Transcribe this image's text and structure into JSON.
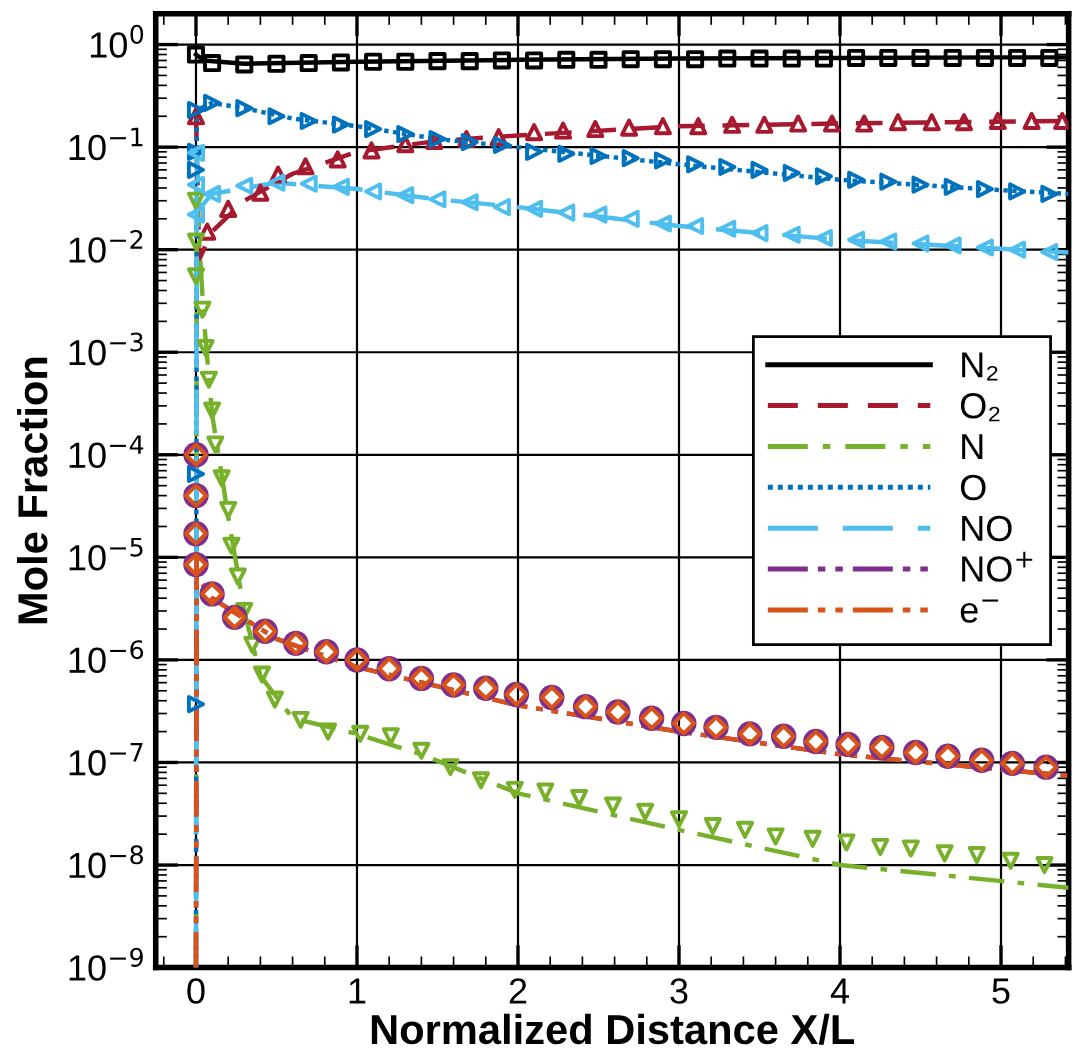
{
  "chart_data": {
    "type": "line",
    "xlabel": "Normalized Distance X/L",
    "ylabel": "Mole Fraction",
    "log": "y",
    "grid": true,
    "legend": "right",
    "xlim": [
      -0.25,
      5.42
    ],
    "xticks": [
      0,
      1,
      2,
      3,
      4,
      5
    ],
    "ylim": [
      1e-09,
      2
    ],
    "yticks": [
      {
        "value": 1e-09,
        "label": "10$^{−9}$"
      },
      {
        "value": 1e-08,
        "label": "10$^{−8}$"
      },
      {
        "value": 1e-07,
        "label": "10$^{−7}$"
      },
      {
        "value": 1e-06,
        "label": "10$^{−6}$"
      },
      {
        "value": 1e-05,
        "label": "10$^{−5}$"
      },
      {
        "value": 0.0001,
        "label": "10$^{−4}$"
      },
      {
        "value": 0.001,
        "label": "10$^{−3}$"
      },
      {
        "value": 0.01,
        "label": "10$^{−2}$"
      },
      {
        "value": 0.1,
        "label": "10$^{−1}$"
      },
      {
        "value": 1,
        "label": "10$^{0}$"
      }
    ],
    "series": [
      {
        "name": "N₂",
        "color": "#000000",
        "line_style": "solid",
        "x": [
          0,
          0.05,
          0.3,
          1,
          2,
          3,
          4,
          5,
          5.42
        ],
        "values": [
          0.8,
          0.7,
          0.65,
          0.68,
          0.71,
          0.73,
          0.74,
          0.75,
          0.75
        ]
      },
      {
        "name": "O₂",
        "color": "#a6192e",
        "line_style": "dashed",
        "x": [
          0,
          0.02,
          0.1,
          0.3,
          0.6,
          1,
          1.5,
          2,
          3,
          4,
          5.42
        ],
        "values": [
          0.21,
          0.008,
          0.015,
          0.03,
          0.055,
          0.09,
          0.115,
          0.13,
          0.16,
          0.17,
          0.18
        ]
      },
      {
        "name": "N",
        "color": "#77b02a",
        "line_style": "dashdot",
        "x": [
          0,
          0.005,
          0.05,
          0.1,
          0.2,
          0.3,
          0.4,
          0.6,
          1,
          1.4,
          2,
          3,
          4,
          5.42
        ],
        "values": [
          1e-09,
          0.03,
          0.002,
          0.00025,
          2.5e-05,
          3e-06,
          7e-07,
          2.7e-07,
          1.9e-07,
          1.2e-07,
          5e-08,
          2.2e-08,
          1e-08,
          6e-09
        ]
      },
      {
        "name": "O",
        "color": "#0072bd",
        "line_style": "dotted",
        "x": [
          0,
          0.005,
          0.1,
          0.3,
          0.6,
          1,
          1.5,
          2,
          3,
          4,
          5,
          5.42
        ],
        "values": [
          1e-09,
          0.23,
          0.27,
          0.24,
          0.19,
          0.16,
          0.12,
          0.1,
          0.068,
          0.048,
          0.038,
          0.035
        ]
      },
      {
        "name": "NO",
        "color": "#4dbeee",
        "line_style": "longdash",
        "x": [
          0,
          0.005,
          0.02,
          0.1,
          0.5,
          1,
          1.5,
          2,
          3,
          4,
          5,
          5.42
        ],
        "values": [
          1e-09,
          0.09,
          0.025,
          0.035,
          0.045,
          0.039,
          0.031,
          0.026,
          0.017,
          0.0125,
          0.0102,
          0.0094
        ]
      },
      {
        "name": "NO$^{+}$",
        "color": "#7e2f8e",
        "line_style": "dashdotdot",
        "x": [
          0,
          0.005,
          0.04,
          0.1,
          0.5,
          1,
          2,
          3,
          4,
          5.42
        ],
        "values": [
          1e-09,
          1e-05,
          5.5e-06,
          4e-06,
          1.6e-06,
          8.5e-07,
          3.6e-07,
          2e-07,
          1.2e-07,
          7.4e-08
        ]
      },
      {
        "name": "e$^{−}$",
        "color": "#d95319",
        "line_style": "dashdotdot",
        "x": [
          0,
          0.005,
          0.04,
          0.1,
          0.5,
          1,
          2,
          3,
          4,
          5.42
        ],
        "values": [
          1e-09,
          1e-05,
          5.5e-06,
          4e-06,
          1.6e-06,
          8.5e-07,
          3.6e-07,
          2e-07,
          1.2e-07,
          7.4e-08
        ]
      },
      {
        "type": "scatter",
        "marker": "square",
        "color": "#000000",
        "x": [
          0,
          0.1,
          0.3,
          0.5,
          0.7,
          0.9,
          1.1,
          1.3,
          1.5,
          1.7,
          1.9,
          2.1,
          2.3,
          2.5,
          2.7,
          2.9,
          3.1,
          3.3,
          3.5,
          3.7,
          3.9,
          4.1,
          4.3,
          4.5,
          4.7,
          4.9,
          5.1,
          5.3
        ],
        "values": [
          0.8,
          0.66,
          0.64,
          0.65,
          0.66,
          0.67,
          0.68,
          0.68,
          0.69,
          0.69,
          0.7,
          0.7,
          0.71,
          0.71,
          0.72,
          0.72,
          0.72,
          0.73,
          0.73,
          0.73,
          0.73,
          0.74,
          0.74,
          0.74,
          0.74,
          0.74,
          0.74,
          0.74
        ]
      },
      {
        "type": "scatter",
        "marker": "triangle-up",
        "color": "#a6192e",
        "x": [
          0,
          0.07,
          0.2,
          0.4,
          0.51,
          0.68,
          0.88,
          1.09,
          1.3,
          1.48,
          1.68,
          1.88,
          2.1,
          2.28,
          2.48,
          2.69,
          2.9,
          3.12,
          3.33,
          3.53,
          3.74,
          3.95,
          4.15,
          4.36,
          4.57,
          4.77,
          4.98,
          5.19,
          5.38
        ],
        "values": [
          0.2,
          0.015,
          0.025,
          0.036,
          0.054,
          0.065,
          0.076,
          0.093,
          0.107,
          0.115,
          0.12,
          0.125,
          0.14,
          0.145,
          0.15,
          0.155,
          0.16,
          0.16,
          0.165,
          0.165,
          0.17,
          0.17,
          0.17,
          0.175,
          0.175,
          0.175,
          0.18,
          0.18,
          0.18
        ]
      },
      {
        "type": "scatter",
        "marker": "triangle-down",
        "color": "#77b02a",
        "x": [
          0,
          0,
          0,
          0.04,
          0.06,
          0.08,
          0.1,
          0.12,
          0.16,
          0.2,
          0.22,
          0.26,
          0.3,
          0.35,
          0.41,
          0.49,
          0.65,
          0.82,
          1.02,
          1.21,
          1.4,
          1.58,
          1.77,
          1.98,
          2.17,
          2.38,
          2.59,
          2.79,
          3.0,
          3.21,
          3.41,
          3.6,
          3.83,
          4.04,
          4.25,
          4.44,
          4.65,
          4.85,
          5.06,
          5.27
        ],
        "values": [
          0.03,
          0.012,
          0.0055,
          0.0026,
          0.0011,
          0.00054,
          0.00027,
          0.000126,
          5.9e-05,
          2.9e-05,
          1.3e-05,
          6.5e-06,
          3e-06,
          1.4e-06,
          7.2e-07,
          4.1e-07,
          2.6e-07,
          2e-07,
          1.9e-07,
          1.8e-07,
          1.3e-07,
          9e-08,
          6.7e-08,
          5.4e-08,
          5.2e-08,
          4.5e-08,
          3.8e-08,
          3.3e-08,
          2.8e-08,
          2.4e-08,
          2.2e-08,
          1.9e-08,
          1.8e-08,
          1.66e-08,
          1.5e-08,
          1.45e-08,
          1.3e-08,
          1.25e-08,
          1.1e-08,
          1e-08
        ]
      },
      {
        "type": "scatter",
        "marker": "triangle-right",
        "color": "#0072bd",
        "x": [
          0,
          0,
          0,
          0,
          0,
          0.1,
          0.3,
          0.5,
          0.7,
          0.9,
          1.1,
          1.3,
          1.5,
          1.7,
          1.9,
          2.1,
          2.3,
          2.5,
          2.7,
          2.9,
          3.1,
          3.3,
          3.5,
          3.7,
          3.9,
          4.1,
          4.3,
          4.5,
          4.7,
          4.9,
          5.1,
          5.3
        ],
        "values": [
          0.23,
          0.09,
          0.06,
          6.5e-05,
          3.7e-07,
          0.27,
          0.24,
          0.2,
          0.18,
          0.166,
          0.15,
          0.134,
          0.12,
          0.112,
          0.105,
          0.09,
          0.086,
          0.082,
          0.078,
          0.074,
          0.068,
          0.064,
          0.06,
          0.056,
          0.052,
          0.048,
          0.046,
          0.043,
          0.041,
          0.039,
          0.037,
          0.035
        ]
      },
      {
        "type": "scatter",
        "marker": "triangle-left",
        "color": "#4dbeee",
        "x": [
          0,
          0,
          0,
          0.1,
          0.3,
          0.5,
          0.7,
          0.9,
          1.1,
          1.3,
          1.5,
          1.7,
          1.9,
          2.1,
          2.3,
          2.5,
          2.7,
          2.9,
          3.1,
          3.3,
          3.5,
          3.7,
          3.9,
          4.1,
          4.3,
          4.5,
          4.7,
          4.9,
          5.1,
          5.3
        ],
        "values": [
          0.088,
          0.043,
          0.022,
          0.035,
          0.042,
          0.045,
          0.044,
          0.041,
          0.037,
          0.034,
          0.031,
          0.029,
          0.026,
          0.025,
          0.023,
          0.022,
          0.02,
          0.018,
          0.017,
          0.016,
          0.0145,
          0.014,
          0.013,
          0.0125,
          0.012,
          0.0115,
          0.011,
          0.0105,
          0.01,
          0.0095
        ]
      },
      {
        "type": "scatter",
        "marker": "circle",
        "color": "#7e2f8e",
        "x": [
          0,
          0,
          0,
          0,
          0.1,
          0.24,
          0.43,
          0.62,
          0.81,
          1.0,
          1.2,
          1.4,
          1.6,
          1.8,
          1.99,
          2.21,
          2.42,
          2.62,
          2.83,
          3.03,
          3.23,
          3.44,
          3.65,
          3.85,
          4.05,
          4.26,
          4.47,
          4.67,
          4.88,
          5.07,
          5.28
        ],
        "values": [
          0.0001,
          4e-05,
          1.7e-05,
          8.5e-06,
          4.4e-06,
          2.6e-06,
          1.9e-06,
          1.45e-06,
          1.2e-06,
          1e-06,
          8.2e-07,
          6.6e-07,
          5.7e-07,
          5.3e-07,
          4.6e-07,
          4.3e-07,
          3.5e-07,
          3.1e-07,
          2.7e-07,
          2.4e-07,
          2.2e-07,
          1.9e-07,
          1.8e-07,
          1.6e-07,
          1.5e-07,
          1.4e-07,
          1.25e-07,
          1.15e-07,
          1.05e-07,
          9.8e-08,
          9e-08
        ]
      },
      {
        "type": "scatter",
        "marker": "diamond",
        "color": "#d95319",
        "x": [
          0,
          0,
          0,
          0,
          0.1,
          0.24,
          0.43,
          0.62,
          0.81,
          1.0,
          1.2,
          1.4,
          1.6,
          1.8,
          1.99,
          2.21,
          2.42,
          2.62,
          2.83,
          3.03,
          3.23,
          3.44,
          3.65,
          3.85,
          4.05,
          4.26,
          4.47,
          4.67,
          4.88,
          5.07,
          5.28
        ],
        "values": [
          0.0001,
          4e-05,
          1.7e-05,
          8.5e-06,
          4.4e-06,
          2.6e-06,
          1.9e-06,
          1.45e-06,
          1.2e-06,
          1e-06,
          8.2e-07,
          6.6e-07,
          5.7e-07,
          5.3e-07,
          4.6e-07,
          4.3e-07,
          3.5e-07,
          3.1e-07,
          2.7e-07,
          2.4e-07,
          2.2e-07,
          1.9e-07,
          1.8e-07,
          1.6e-07,
          1.5e-07,
          1.4e-07,
          1.25e-07,
          1.15e-07,
          1.05e-07,
          9.8e-08,
          9e-08
        ]
      }
    ]
  }
}
